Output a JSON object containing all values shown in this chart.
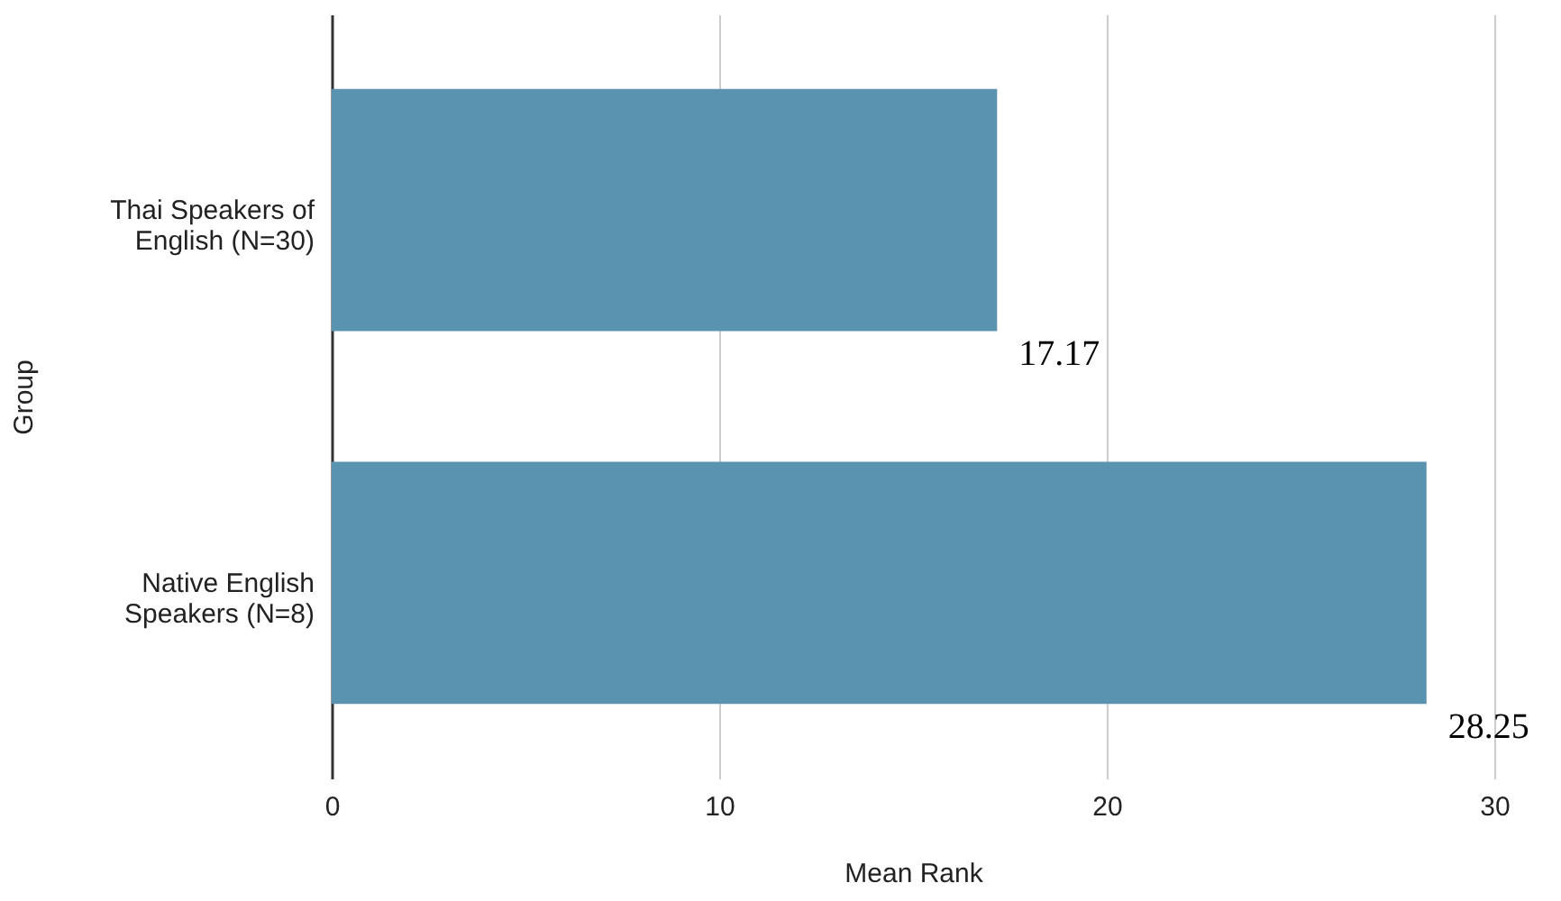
{
  "chart_data": {
    "type": "bar",
    "orientation": "horizontal",
    "categories": [
      "Thai Speakers of English (N=30)",
      "Native English Speakers (N=8)"
    ],
    "values": [
      17.17,
      28.25
    ],
    "color": "#5a93b0",
    "xlabel": "Mean Rank",
    "ylabel": "Group",
    "xlim": [
      0,
      30
    ],
    "xticks": [
      0,
      10,
      20,
      30
    ],
    "grid": "x",
    "data_labels": true
  }
}
